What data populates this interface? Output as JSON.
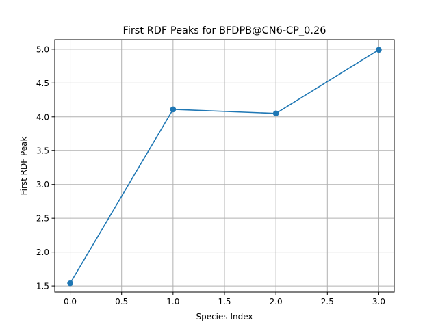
{
  "chart_data": {
    "type": "line",
    "title": "First RDF Peaks for BFDPB@CN6-CP_0.26",
    "xlabel": "Species Index",
    "ylabel": "First RDF Peak",
    "x": [
      0,
      1,
      2,
      3
    ],
    "series": [
      {
        "values": [
          1.54,
          4.11,
          4.05,
          4.99
        ]
      }
    ],
    "xlim": [
      -0.15,
      3.15
    ],
    "ylim": [
      1.41,
      5.14
    ],
    "xticks": [
      0.0,
      0.5,
      1.0,
      1.5,
      2.0,
      2.5,
      3.0
    ],
    "xtick_labels": [
      "0.0",
      "0.5",
      "1.0",
      "1.5",
      "2.0",
      "2.5",
      "3.0"
    ],
    "yticks": [
      1.5,
      2.0,
      2.5,
      3.0,
      3.5,
      4.0,
      4.5,
      5.0
    ],
    "ytick_labels": [
      "1.5",
      "2.0",
      "2.5",
      "3.0",
      "3.5",
      "4.0",
      "4.5",
      "5.0"
    ],
    "grid": true,
    "markers": true,
    "colors": {
      "line": "#1f77b4",
      "grid": "#b0b0b0",
      "axes": "#000000"
    }
  }
}
